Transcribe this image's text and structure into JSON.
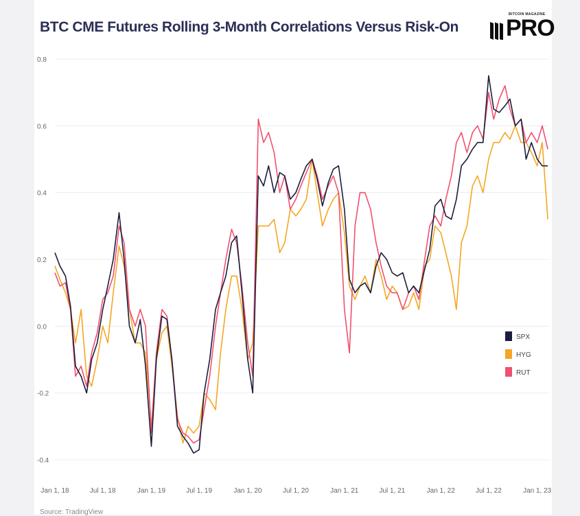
{
  "title": "BTC CME Futures Rolling 3-Month Correlations Versus Risk-On",
  "logo": {
    "small_text": "BITCOIN MAGAZINE",
    "text": "PRO"
  },
  "source": "Source: TradingView",
  "chart_data": {
    "type": "line",
    "title": "BTC CME Futures Rolling 3-Month Correlations Versus Risk-On",
    "xlabel": "",
    "ylabel": "",
    "ylim": [
      -0.4,
      0.8
    ],
    "yticks": [
      -0.4,
      -0.2,
      0.0,
      0.2,
      0.4,
      0.6,
      0.8
    ],
    "ytick_labels": [
      "-0.4",
      "-0.2",
      "0.0",
      "0.2",
      "0.4",
      "0.6",
      "0.8"
    ],
    "xlim": [
      "2018-01-01",
      "2023-02-15"
    ],
    "xticks": [
      "2018-01-01",
      "2018-07-01",
      "2019-01-01",
      "2019-07-01",
      "2020-01-01",
      "2020-07-01",
      "2021-01-01",
      "2021-07-01",
      "2022-01-01",
      "2022-07-01",
      "2023-01-01"
    ],
    "xtick_labels": [
      "Jan 1, 18",
      "Jul 1, 18",
      "Jan 1, 19",
      "Jul 1, 19",
      "Jan 1, 20",
      "Jul 1, 20",
      "Jan 1, 21",
      "Jul 1, 21",
      "Jan 1, 22",
      "Jul 1, 22",
      "Jan 1, 23"
    ],
    "grid": true,
    "legend_position": "right",
    "series": [
      {
        "name": "SPX",
        "color": "#1b1e3c",
        "x": [
          "2018-01-01",
          "2018-01-20",
          "2018-02-10",
          "2018-03-01",
          "2018-03-20",
          "2018-04-10",
          "2018-05-01",
          "2018-05-20",
          "2018-06-10",
          "2018-07-01",
          "2018-07-20",
          "2018-08-10",
          "2018-09-01",
          "2018-09-20",
          "2018-10-10",
          "2018-11-01",
          "2018-11-20",
          "2018-12-10",
          "2019-01-01",
          "2019-01-20",
          "2019-02-10",
          "2019-03-01",
          "2019-03-20",
          "2019-04-10",
          "2019-05-01",
          "2019-05-20",
          "2019-06-10",
          "2019-07-01",
          "2019-07-20",
          "2019-08-10",
          "2019-09-01",
          "2019-09-20",
          "2019-10-10",
          "2019-11-01",
          "2019-11-20",
          "2019-12-10",
          "2020-01-01",
          "2020-01-20",
          "2020-02-10",
          "2020-03-01",
          "2020-03-20",
          "2020-04-10",
          "2020-05-01",
          "2020-05-20",
          "2020-06-10",
          "2020-07-01",
          "2020-07-20",
          "2020-08-10",
          "2020-09-01",
          "2020-09-20",
          "2020-10-10",
          "2020-11-01",
          "2020-11-20",
          "2020-12-10",
          "2021-01-01",
          "2021-01-20",
          "2021-02-10",
          "2021-03-01",
          "2021-03-20",
          "2021-04-10",
          "2021-05-01",
          "2021-05-20",
          "2021-06-10",
          "2021-07-01",
          "2021-07-20",
          "2021-08-10",
          "2021-09-01",
          "2021-09-20",
          "2021-10-10",
          "2021-11-01",
          "2021-11-20",
          "2021-12-10",
          "2022-01-01",
          "2022-01-20",
          "2022-02-10",
          "2022-03-01",
          "2022-03-20",
          "2022-04-10",
          "2022-05-01",
          "2022-05-20",
          "2022-06-10",
          "2022-07-01",
          "2022-07-20",
          "2022-08-10",
          "2022-09-01",
          "2022-09-20",
          "2022-10-10",
          "2022-11-01",
          "2022-11-20",
          "2022-12-10",
          "2023-01-01",
          "2023-01-20",
          "2023-02-10"
        ],
        "y": [
          0.22,
          0.18,
          0.15,
          0.06,
          -0.12,
          -0.15,
          -0.2,
          -0.1,
          -0.05,
          0.05,
          0.12,
          0.2,
          0.34,
          0.2,
          0.0,
          -0.05,
          0.02,
          -0.12,
          -0.36,
          -0.1,
          0.03,
          0.02,
          -0.1,
          -0.3,
          -0.33,
          -0.35,
          -0.38,
          -0.37,
          -0.2,
          -0.1,
          0.05,
          0.1,
          0.15,
          0.25,
          0.27,
          0.1,
          -0.1,
          -0.2,
          0.45,
          0.42,
          0.48,
          0.4,
          0.46,
          0.45,
          0.38,
          0.4,
          0.44,
          0.48,
          0.5,
          0.44,
          0.36,
          0.43,
          0.47,
          0.48,
          0.35,
          0.14,
          0.1,
          0.12,
          0.13,
          0.1,
          0.18,
          0.22,
          0.2,
          0.16,
          0.15,
          0.16,
          0.1,
          0.12,
          0.1,
          0.17,
          0.23,
          0.36,
          0.38,
          0.33,
          0.32,
          0.38,
          0.48,
          0.5,
          0.53,
          0.55,
          0.55,
          0.75,
          0.65,
          0.64,
          0.66,
          0.68,
          0.6,
          0.62,
          0.5,
          0.55,
          0.5,
          0.48,
          0.48
        ]
      },
      {
        "name": "HYG",
        "color": "#f5a623",
        "x": [
          "2018-01-01",
          "2018-01-20",
          "2018-02-10",
          "2018-03-01",
          "2018-03-20",
          "2018-04-10",
          "2018-05-01",
          "2018-05-20",
          "2018-06-10",
          "2018-07-01",
          "2018-07-20",
          "2018-08-10",
          "2018-09-01",
          "2018-09-20",
          "2018-10-10",
          "2018-11-01",
          "2018-11-20",
          "2018-12-10",
          "2019-01-01",
          "2019-01-20",
          "2019-02-10",
          "2019-03-01",
          "2019-03-20",
          "2019-04-10",
          "2019-05-01",
          "2019-05-20",
          "2019-06-10",
          "2019-07-01",
          "2019-07-20",
          "2019-08-10",
          "2019-09-01",
          "2019-09-20",
          "2019-10-10",
          "2019-11-01",
          "2019-11-20",
          "2019-12-10",
          "2020-01-01",
          "2020-01-20",
          "2020-02-10",
          "2020-03-01",
          "2020-03-20",
          "2020-04-10",
          "2020-05-01",
          "2020-05-20",
          "2020-06-10",
          "2020-07-01",
          "2020-07-20",
          "2020-08-10",
          "2020-09-01",
          "2020-09-20",
          "2020-10-10",
          "2020-11-01",
          "2020-11-20",
          "2020-12-10",
          "2021-01-01",
          "2021-01-20",
          "2021-02-10",
          "2021-03-01",
          "2021-03-20",
          "2021-04-10",
          "2021-05-01",
          "2021-05-20",
          "2021-06-10",
          "2021-07-01",
          "2021-07-20",
          "2021-08-10",
          "2021-09-01",
          "2021-09-20",
          "2021-10-10",
          "2021-11-01",
          "2021-11-20",
          "2021-12-10",
          "2022-01-01",
          "2022-01-20",
          "2022-02-10",
          "2022-03-01",
          "2022-03-20",
          "2022-04-10",
          "2022-05-01",
          "2022-05-20",
          "2022-06-10",
          "2022-07-01",
          "2022-07-20",
          "2022-08-10",
          "2022-09-01",
          "2022-09-20",
          "2022-10-10",
          "2022-11-01",
          "2022-11-20",
          "2022-12-10",
          "2023-01-01",
          "2023-01-20",
          "2023-02-10"
        ],
        "y": [
          0.18,
          0.14,
          0.1,
          0.05,
          -0.05,
          0.05,
          -0.15,
          -0.18,
          -0.1,
          0.0,
          -0.05,
          0.1,
          0.24,
          0.18,
          0.05,
          -0.05,
          -0.05,
          -0.08,
          -0.3,
          -0.1,
          -0.02,
          0.0,
          -0.12,
          -0.27,
          -0.35,
          -0.3,
          -0.32,
          -0.3,
          -0.2,
          -0.22,
          -0.25,
          -0.08,
          0.05,
          0.15,
          0.15,
          0.05,
          -0.1,
          -0.05,
          0.3,
          0.3,
          0.3,
          0.32,
          0.22,
          0.25,
          0.35,
          0.33,
          0.35,
          0.38,
          0.5,
          0.4,
          0.3,
          0.35,
          0.38,
          0.4,
          0.28,
          0.12,
          0.08,
          0.12,
          0.15,
          0.1,
          0.2,
          0.15,
          0.08,
          0.12,
          0.1,
          0.05,
          0.06,
          0.1,
          0.05,
          0.18,
          0.2,
          0.3,
          0.28,
          0.22,
          0.15,
          0.05,
          0.25,
          0.3,
          0.42,
          0.45,
          0.4,
          0.5,
          0.55,
          0.55,
          0.58,
          0.56,
          0.6,
          0.55,
          0.55,
          0.52,
          0.48,
          0.55,
          0.32
        ]
      },
      {
        "name": "RUT",
        "color": "#f0506e",
        "x": [
          "2018-01-01",
          "2018-01-20",
          "2018-02-10",
          "2018-03-01",
          "2018-03-20",
          "2018-04-10",
          "2018-05-01",
          "2018-05-20",
          "2018-06-10",
          "2018-07-01",
          "2018-07-20",
          "2018-08-10",
          "2018-09-01",
          "2018-09-20",
          "2018-10-10",
          "2018-11-01",
          "2018-11-20",
          "2018-12-10",
          "2019-01-01",
          "2019-01-20",
          "2019-02-10",
          "2019-03-01",
          "2019-03-20",
          "2019-04-10",
          "2019-05-01",
          "2019-05-20",
          "2019-06-10",
          "2019-07-01",
          "2019-07-20",
          "2019-08-10",
          "2019-09-01",
          "2019-09-20",
          "2019-10-10",
          "2019-11-01",
          "2019-11-20",
          "2019-12-10",
          "2020-01-01",
          "2020-01-20",
          "2020-02-10",
          "2020-03-01",
          "2020-03-20",
          "2020-04-10",
          "2020-05-01",
          "2020-05-20",
          "2020-06-10",
          "2020-07-01",
          "2020-07-20",
          "2020-08-10",
          "2020-09-01",
          "2020-09-20",
          "2020-10-10",
          "2020-11-01",
          "2020-11-20",
          "2020-12-10",
          "2021-01-01",
          "2021-01-20",
          "2021-02-10",
          "2021-03-01",
          "2021-03-20",
          "2021-04-10",
          "2021-05-01",
          "2021-05-20",
          "2021-06-10",
          "2021-07-01",
          "2021-07-20",
          "2021-08-10",
          "2021-09-01",
          "2021-09-20",
          "2021-10-10",
          "2021-11-01",
          "2021-11-20",
          "2021-12-10",
          "2022-01-01",
          "2022-01-20",
          "2022-02-10",
          "2022-03-01",
          "2022-03-20",
          "2022-04-10",
          "2022-05-01",
          "2022-05-20",
          "2022-06-10",
          "2022-07-01",
          "2022-07-20",
          "2022-08-10",
          "2022-09-01",
          "2022-09-20",
          "2022-10-10",
          "2022-11-01",
          "2022-11-20",
          "2022-12-10",
          "2023-01-01",
          "2023-01-20",
          "2023-02-10"
        ],
        "y": [
          0.16,
          0.12,
          0.13,
          0.05,
          -0.15,
          -0.12,
          -0.18,
          -0.08,
          -0.02,
          0.08,
          0.1,
          0.15,
          0.3,
          0.25,
          0.05,
          0.0,
          0.05,
          0.0,
          -0.32,
          -0.08,
          0.05,
          0.03,
          -0.1,
          -0.28,
          -0.32,
          -0.33,
          -0.35,
          -0.34,
          -0.25,
          -0.15,
          0.0,
          0.1,
          0.2,
          0.29,
          0.25,
          0.12,
          -0.05,
          -0.15,
          0.62,
          0.55,
          0.58,
          0.52,
          0.4,
          0.45,
          0.35,
          0.38,
          0.42,
          0.46,
          0.5,
          0.45,
          0.38,
          0.42,
          0.45,
          0.4,
          0.05,
          -0.08,
          0.3,
          0.4,
          0.4,
          0.35,
          0.25,
          0.18,
          0.12,
          0.1,
          0.1,
          0.05,
          0.1,
          0.12,
          0.08,
          0.2,
          0.3,
          0.33,
          0.3,
          0.38,
          0.45,
          0.55,
          0.58,
          0.52,
          0.58,
          0.6,
          0.56,
          0.7,
          0.62,
          0.68,
          0.72,
          0.65,
          0.6,
          0.62,
          0.55,
          0.58,
          0.55,
          0.6,
          0.53
        ]
      }
    ]
  }
}
